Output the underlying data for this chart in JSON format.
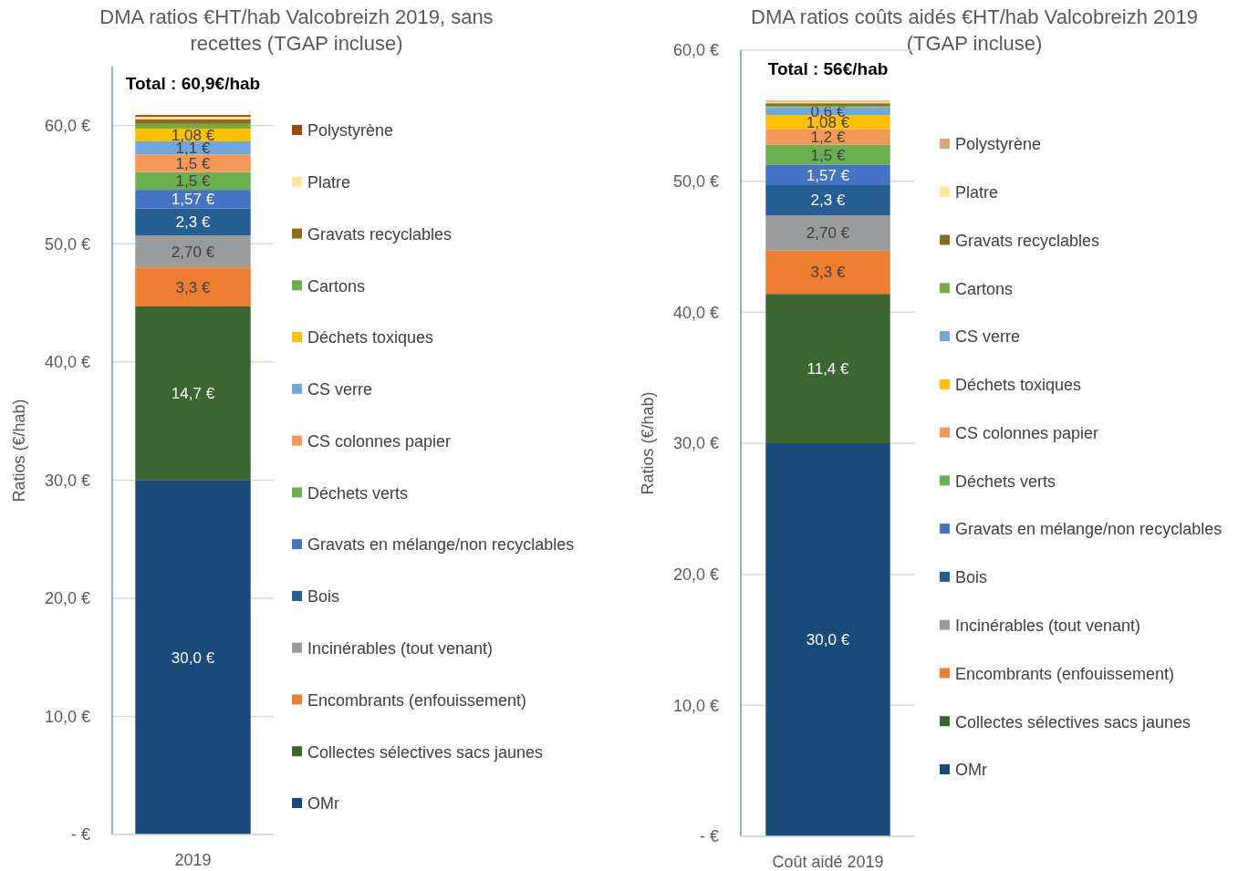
{
  "chart_data": [
    {
      "type": "bar",
      "stacked": true,
      "title": "DMA ratios €HT/hab Valcobreizh 2019, sans recettes (TGAP incluse)",
      "ylabel": "Ratios (€/hab)",
      "annotations": [
        "Total : 60,9€/hab"
      ],
      "categories": [
        "2019"
      ],
      "ylim": [
        0,
        65
      ],
      "yticks": [
        {
          "value": 0,
          "label": "-  €"
        },
        {
          "value": 10,
          "label": "10,0 €"
        },
        {
          "value": 20,
          "label": "20,0 €"
        },
        {
          "value": 30,
          "label": "30,0 €"
        },
        {
          "value": 40,
          "label": "40,0 €"
        },
        {
          "value": 50,
          "label": "50,0 €"
        },
        {
          "value": 60,
          "label": "60,0 €"
        }
      ],
      "grid": "y",
      "legend": "right",
      "series": [
        {
          "name": "OMr",
          "color": "#1a4a7a",
          "values": [
            30.0
          ],
          "value_labels": [
            "30,0 €"
          ]
        },
        {
          "name": "Collectes sélectives sacs jaunes",
          "color": "#3b6632",
          "values": [
            14.7
          ],
          "value_labels": [
            "14,7 €"
          ]
        },
        {
          "name": "Encombrants (enfouissement)",
          "color": "#ed7d31",
          "values": [
            3.3
          ],
          "value_labels": [
            "3,3 €"
          ]
        },
        {
          "name": "Incinérables (tout venant)",
          "color": "#999b9c",
          "values": [
            2.7
          ],
          "value_labels": [
            "2,70 €"
          ]
        },
        {
          "name": "Bois",
          "color": "#255e91",
          "values": [
            2.3
          ],
          "value_labels": [
            "2,3 €"
          ]
        },
        {
          "name": "Gravats en mélange/non recyclables",
          "color": "#4472c4",
          "values": [
            1.57
          ],
          "value_labels": [
            "1,57 €"
          ]
        },
        {
          "name": "Déchets verts",
          "color": "#6aaf50",
          "values": [
            1.5
          ],
          "value_labels": [
            "1,5 €"
          ]
        },
        {
          "name": "CS colonnes papier",
          "color": "#f4975a",
          "values": [
            1.5
          ],
          "value_labels": [
            "1,5 €"
          ]
        },
        {
          "name": "CS verre",
          "color": "#6fa8dc",
          "values": [
            1.1
          ],
          "value_labels": [
            "1,1 €"
          ]
        },
        {
          "name": "Déchets toxiques",
          "color": "#ffc000",
          "values": [
            1.08
          ],
          "value_labels": [
            "1,08 €"
          ]
        },
        {
          "name": "Cartons",
          "color": "#70ad47",
          "values": [
            0.4
          ],
          "value_labels": [
            null
          ]
        },
        {
          "name": "Gravats recyclables",
          "color": "#8b6a1e",
          "values": [
            0.4
          ],
          "value_labels": [
            null
          ]
        },
        {
          "name": "Platre",
          "color": "#ffe699",
          "values": [
            0.2
          ],
          "value_labels": [
            null
          ]
        },
        {
          "name": "Polystyrène",
          "color": "#9e480e",
          "values": [
            0.15
          ],
          "value_labels": [
            null
          ]
        }
      ]
    },
    {
      "type": "bar",
      "stacked": true,
      "title": "DMA ratios coûts aidés €HT/hab Valcobreizh 2019 (TGAP incluse)",
      "ylabel": "Ratios (€/hab)",
      "annotations": [
        "Total : 56€/hab"
      ],
      "categories": [
        "Coût aidé 2019"
      ],
      "ylim": [
        0,
        60
      ],
      "yticks": [
        {
          "value": 0,
          "label": "-  €"
        },
        {
          "value": 10,
          "label": "10,0 €"
        },
        {
          "value": 20,
          "label": "20,0 €"
        },
        {
          "value": 30,
          "label": "30,0 €"
        },
        {
          "value": 40,
          "label": "40,0 €"
        },
        {
          "value": 50,
          "label": "50,0 €"
        },
        {
          "value": 60,
          "label": "60,0 €"
        }
      ],
      "grid": "y",
      "legend": "right",
      "series": [
        {
          "name": "OMr",
          "color": "#1a4a7a",
          "values": [
            30.0
          ],
          "value_labels": [
            "30,0 €"
          ]
        },
        {
          "name": "Collectes sélectives sacs jaunes",
          "color": "#3b6632",
          "values": [
            11.4
          ],
          "value_labels": [
            "11,4 €"
          ]
        },
        {
          "name": "Encombrants (enfouissement)",
          "color": "#ed7d31",
          "values": [
            3.3
          ],
          "value_labels": [
            "3,3 €"
          ]
        },
        {
          "name": "Incinérables (tout venant)",
          "color": "#999b9c",
          "values": [
            2.7
          ],
          "value_labels": [
            "2,70 €"
          ]
        },
        {
          "name": "Bois",
          "color": "#255e91",
          "values": [
            2.3
          ],
          "value_labels": [
            "2,3 €"
          ]
        },
        {
          "name": "Gravats en mélange/non recyclables",
          "color": "#4472c4",
          "values": [
            1.57
          ],
          "value_labels": [
            "1,57 €"
          ]
        },
        {
          "name": "Déchets verts",
          "color": "#6aaf50",
          "values": [
            1.5
          ],
          "value_labels": [
            "1,5 €"
          ]
        },
        {
          "name": "CS colonnes papier",
          "color": "#f4975a",
          "values": [
            1.2
          ],
          "value_labels": [
            "1,2 €"
          ]
        },
        {
          "name": "Déchets toxiques",
          "color": "#ffc000",
          "values": [
            1.08
          ],
          "value_labels": [
            "1,08 €"
          ]
        },
        {
          "name": "CS verre",
          "color": "#6fa8dc",
          "values": [
            0.6
          ],
          "value_labels": [
            "0,6 €"
          ]
        },
        {
          "name": "Cartons",
          "color": "#70ad47",
          "values": [
            0.1
          ],
          "value_labels": [
            null
          ]
        },
        {
          "name": "Gravats recyclables",
          "color": "#8b6a1e",
          "values": [
            0.2
          ],
          "value_labels": [
            null
          ]
        },
        {
          "name": "Platre",
          "color": "#ffe699",
          "values": [
            0.1
          ],
          "value_labels": [
            null
          ]
        },
        {
          "name": "Polystyrène",
          "color": "#d9a77a",
          "values": [
            0.1
          ],
          "value_labels": [
            null
          ]
        }
      ]
    }
  ]
}
